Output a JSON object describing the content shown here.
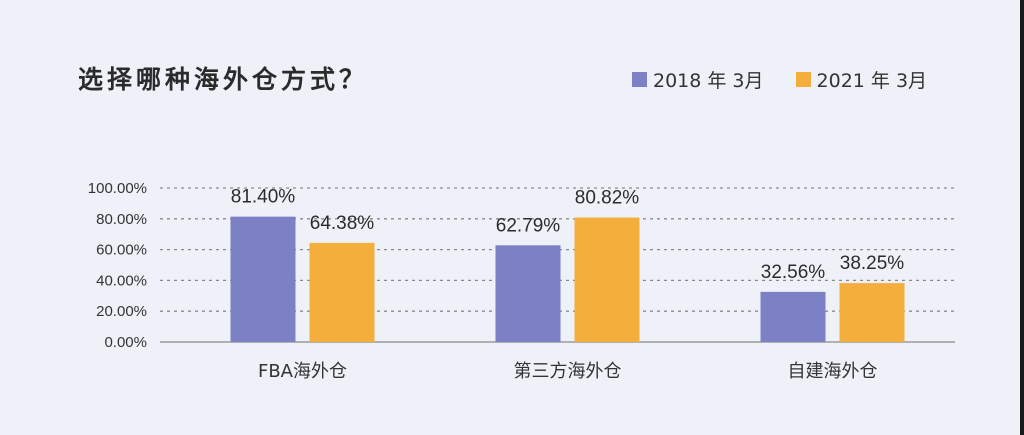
{
  "colors": {
    "series1": "#7b81c4",
    "series2": "#f4ae3c",
    "grid": "#8a8a8a",
    "axis": "#9a9a9a"
  },
  "chart_data": {
    "type": "bar",
    "title": "选择哪种海外仓方式？",
    "categories": [
      "FBA海外仓",
      "第三方海外仓",
      "自建海外仓"
    ],
    "series": [
      {
        "name": "2018 年 3月",
        "values": [
          81.4,
          62.79,
          32.56
        ],
        "labels": [
          "81.40%",
          "62.79%",
          "32.56%"
        ]
      },
      {
        "name": "2021 年 3月",
        "values": [
          64.38,
          80.82,
          38.25
        ],
        "labels": [
          "64.38%",
          "80.82%",
          "38.25%"
        ]
      }
    ],
    "yticks": [
      "0.00%",
      "20.00%",
      "40.00%",
      "60.00%",
      "80.00%",
      "100.00%"
    ],
    "ylim": [
      0,
      100
    ],
    "grid": true,
    "legend": "top-right"
  }
}
